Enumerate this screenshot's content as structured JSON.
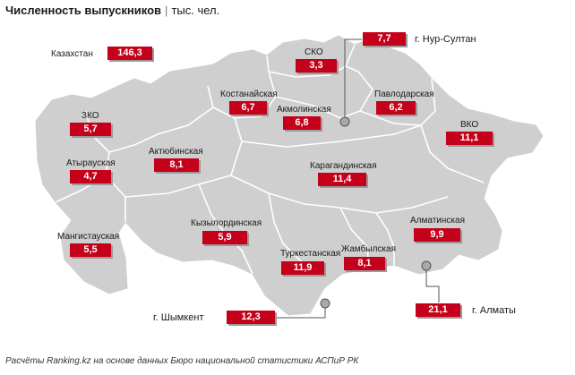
{
  "title": {
    "main": "Численность выпускников",
    "separator": "|",
    "unit": "тыс. чел."
  },
  "national": {
    "name": "Казахстан",
    "value": "146,3"
  },
  "regions": [
    {
      "id": "sko",
      "name": "СКО",
      "value": "3,3"
    },
    {
      "id": "kostanay",
      "name": "Костанайская",
      "value": "6,7"
    },
    {
      "id": "pavlodar",
      "name": "Павлодарская",
      "value": "6,2"
    },
    {
      "id": "akmola",
      "name": "Акмолинская",
      "value": "6,8"
    },
    {
      "id": "zko",
      "name": "ЗКО",
      "value": "5,7"
    },
    {
      "id": "vko",
      "name": "ВКО",
      "value": "11,1"
    },
    {
      "id": "atyrau",
      "name": "Атырауская",
      "value": "4,7"
    },
    {
      "id": "aktobe",
      "name": "Актюбинская",
      "value": "8,1"
    },
    {
      "id": "karaganda",
      "name": "Карагандинская",
      "value": "11,4"
    },
    {
      "id": "kyzylorda",
      "name": "Кызылординская",
      "value": "5,9"
    },
    {
      "id": "almaty-reg",
      "name": "Алматинская",
      "value": "9,9"
    },
    {
      "id": "mangystau",
      "name": "Мангистауская",
      "value": "5,5"
    },
    {
      "id": "turkestan",
      "name": "Туркестанская",
      "value": "11,9"
    },
    {
      "id": "zhambyl",
      "name": "Жамбылская",
      "value": "8,1"
    }
  ],
  "cities": [
    {
      "id": "nursultan",
      "name": "г. Нур-Султан",
      "value": "7,7"
    },
    {
      "id": "shymkent",
      "name": "г. Шымкент",
      "value": "12,3"
    },
    {
      "id": "almaty",
      "name": "г. Алматы",
      "value": "21,1"
    }
  ],
  "colors": {
    "value_box": "#c4001a",
    "map_fill": "#cfcfcf",
    "map_border": "#ffffff",
    "city_marker": "#a9a9a9"
  },
  "footer": "Расчёты Ranking.kz на основе данных Бюро национальной статистики АСПиР РК"
}
